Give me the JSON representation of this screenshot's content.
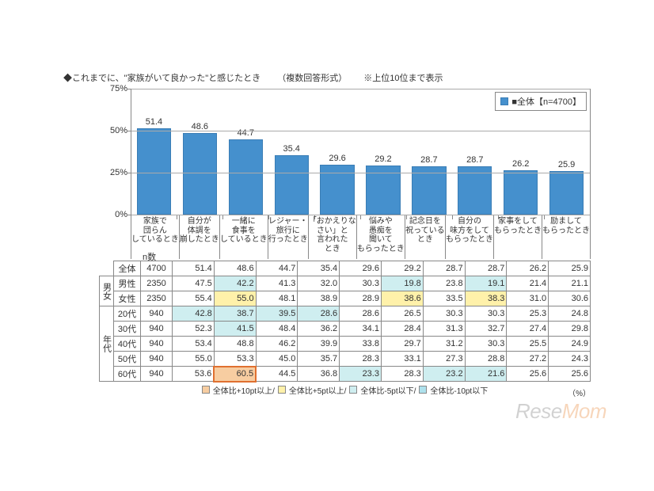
{
  "title_lead": "◆これまでに、\"家族がいて良かった\"と感じたとき",
  "title_sub1": "（複数回答形式）",
  "title_sub2": "※上位10位まで表示",
  "chart": {
    "type": "bar",
    "legend_label": "■全体【n=4700】",
    "ymax": 75,
    "ystep": 25,
    "y_unit": "%",
    "bar_color": "#4590cd",
    "grid_color": "#aaaaaa",
    "categories": [
      [
        "家族で",
        "団らん",
        "しているとき"
      ],
      [
        "自分が",
        "体調を",
        "崩したとき"
      ],
      [
        "一緒に",
        "食事を",
        "しているとき"
      ],
      [
        "レジャー・",
        "旅行に",
        "行ったとき"
      ],
      [
        "「おかえりな",
        "さい」と",
        "言われた",
        "とき"
      ],
      [
        "悩みや",
        "愚痴を",
        "聞いて",
        "もらったとき"
      ],
      [
        "記念日を",
        "祝っている",
        "とき"
      ],
      [
        "自分の",
        "味方をして",
        "もらったとき"
      ],
      [
        "家事をして",
        "もらったとき"
      ],
      [
        "励まして",
        "もらったとき"
      ]
    ],
    "values": [
      51.4,
      48.6,
      44.7,
      35.4,
      29.6,
      29.2,
      28.7,
      28.7,
      26.2,
      25.9
    ]
  },
  "table": {
    "n_label": "n数",
    "group1_label": "男女",
    "group2_label": "年代",
    "pct_note": "（%）",
    "rows": [
      {
        "head": "全体",
        "n": "4700",
        "vals": [
          51.4,
          48.6,
          44.7,
          35.4,
          29.6,
          29.2,
          28.7,
          28.7,
          26.2,
          25.9
        ],
        "hl": [
          "",
          "",
          "",
          "",
          "",
          "",
          "",
          "",
          "",
          ""
        ]
      },
      {
        "head": "男性",
        "n": "2350",
        "vals": [
          47.5,
          42.2,
          41.3,
          32.0,
          30.3,
          19.8,
          23.8,
          19.1,
          21.4,
          21.1
        ],
        "hl": [
          "",
          "m5",
          "",
          "",
          "",
          "m5",
          "",
          "m5",
          "",
          ""
        ]
      },
      {
        "head": "女性",
        "n": "2350",
        "vals": [
          55.4,
          55.0,
          48.1,
          38.9,
          28.9,
          38.6,
          33.5,
          38.3,
          31.0,
          30.6
        ],
        "hl": [
          "",
          "p5",
          "",
          "",
          "",
          "p5",
          "",
          "p5",
          "",
          ""
        ]
      },
      {
        "head": "20代",
        "n": "940",
        "vals": [
          42.8,
          38.7,
          39.5,
          28.6,
          28.6,
          26.5,
          30.3,
          30.3,
          25.3,
          24.8
        ],
        "hl": [
          "m5",
          "m5",
          "m5",
          "m5",
          "",
          "",
          "",
          "",
          "",
          ""
        ]
      },
      {
        "head": "30代",
        "n": "940",
        "vals": [
          52.3,
          41.5,
          48.4,
          36.2,
          34.1,
          28.4,
          31.3,
          32.7,
          27.4,
          29.8
        ],
        "hl": [
          "",
          "m5",
          "",
          "",
          "",
          "",
          "",
          "",
          "",
          ""
        ]
      },
      {
        "head": "40代",
        "n": "940",
        "vals": [
          53.4,
          48.8,
          46.2,
          39.9,
          33.8,
          29.7,
          31.2,
          30.3,
          25.5,
          24.9
        ],
        "hl": [
          "",
          "",
          "",
          "",
          "",
          "",
          "",
          "",
          "",
          ""
        ]
      },
      {
        "head": "50代",
        "n": "940",
        "vals": [
          55.0,
          53.3,
          45.0,
          35.7,
          28.3,
          33.1,
          27.3,
          28.8,
          27.2,
          24.3
        ],
        "hl": [
          "",
          "",
          "",
          "",
          "",
          "",
          "",
          "",
          "",
          ""
        ]
      },
      {
        "head": "60代",
        "n": "940",
        "vals": [
          53.6,
          60.5,
          44.5,
          36.8,
          23.3,
          28.3,
          23.2,
          21.6,
          25.6,
          25.6
        ],
        "hl": [
          "",
          "p10",
          "",
          "",
          "m5",
          "",
          "m5",
          "m5",
          "",
          ""
        ]
      }
    ]
  },
  "table_legend": [
    {
      "label": "全体比+10pt以上/",
      "color": "#f7cda1"
    },
    {
      "label": "全体比+5pt以上/",
      "color": "#fff1aa"
    },
    {
      "label": "全体比-5pt以下/",
      "color": "#cfeef0"
    },
    {
      "label": "全体比-10pt以下",
      "color": "#aee1ec"
    }
  ],
  "watermark": {
    "a": "Rese",
    "b": "Mom"
  }
}
